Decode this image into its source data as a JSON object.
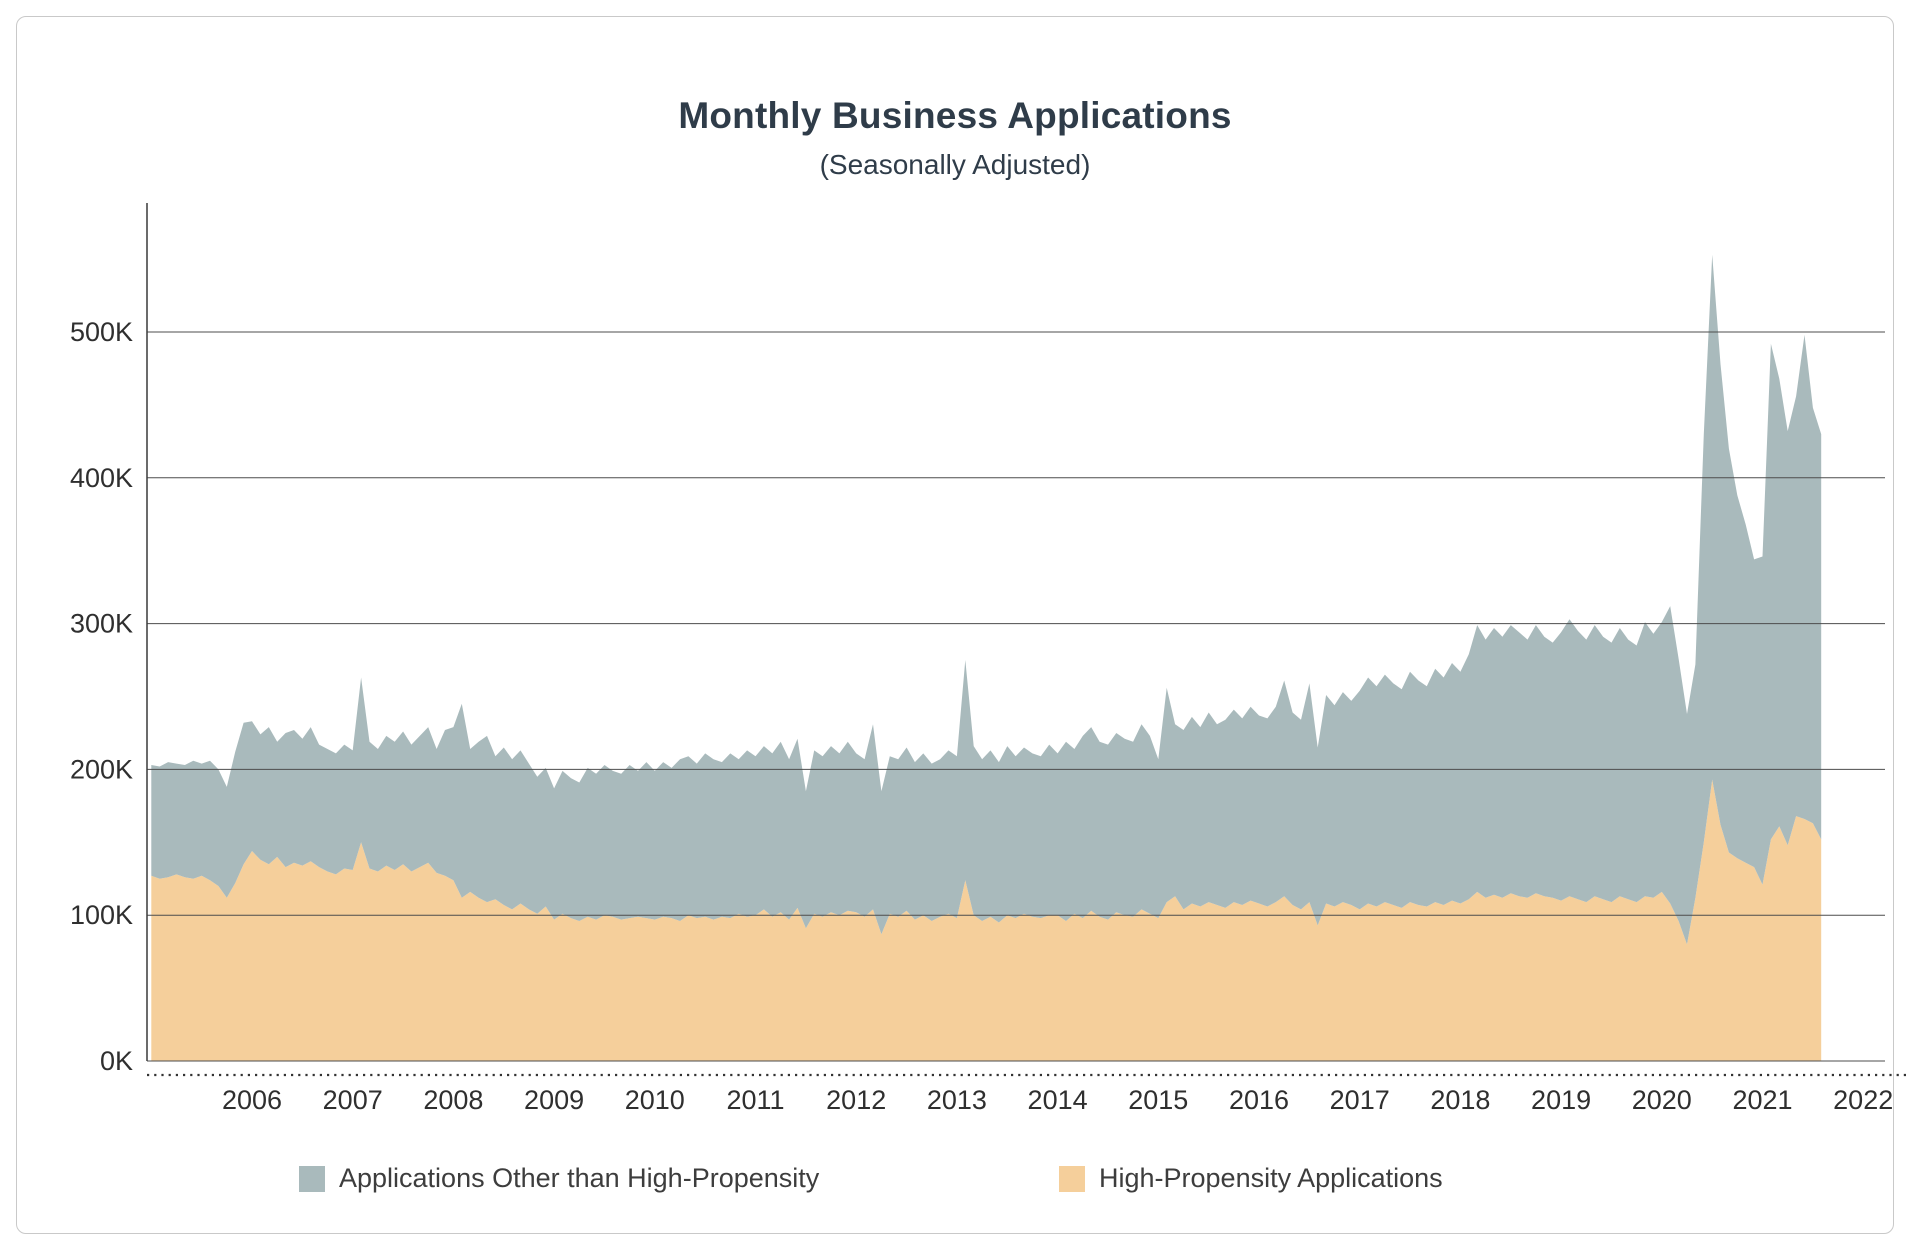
{
  "header": {
    "title": "Monthly Business Applications",
    "subtitle": "(Seasonally Adjusted)"
  },
  "legend": [
    {
      "label": "Applications Other than High-Propensity",
      "color": "#a9babc"
    },
    {
      "label": "High-Propensity Applications",
      "color": "#f5cf9b"
    }
  ],
  "axes": {
    "y_ticks": [
      {
        "label": "500K",
        "value": 500
      },
      {
        "label": "400K",
        "value": 400
      },
      {
        "label": "300K",
        "value": 300
      },
      {
        "label": "200K",
        "value": 200
      },
      {
        "label": "100K",
        "value": 100
      },
      {
        "label": "0K",
        "value": 0
      }
    ],
    "x_ticks": [
      "2006",
      "2007",
      "2008",
      "2009",
      "2010",
      "2011",
      "2012",
      "2013",
      "2014",
      "2015",
      "2016",
      "2017",
      "2018",
      "2019",
      "2020",
      "2021",
      "2022"
    ]
  },
  "chart_data": {
    "type": "area",
    "stacked": true,
    "title": "Monthly Business Applications",
    "subtitle": "(Seasonally Adjusted)",
    "unit": "thousands of applications per month",
    "frequency": "monthly",
    "start_month": "2005-01",
    "end_month": "2021-08",
    "ylim": [
      0,
      560
    ],
    "x_axis_years": [
      2006,
      2007,
      2008,
      2009,
      2010,
      2011,
      2012,
      2013,
      2014,
      2015,
      2016,
      2017,
      2018,
      2019,
      2020,
      2021,
      2022
    ],
    "grid": true,
    "legend_position": "bottom",
    "series": [
      {
        "name": "High-Propensity Applications",
        "color": "#f5cf9b",
        "values": [
          127,
          125,
          126,
          128,
          126,
          125,
          127,
          124,
          120,
          112,
          122,
          135,
          144,
          138,
          135,
          140,
          133,
          136,
          134,
          137,
          133,
          130,
          128,
          132,
          131,
          150,
          132,
          130,
          134,
          131,
          135,
          130,
          133,
          136,
          129,
          127,
          124,
          112,
          116,
          112,
          109,
          111,
          107,
          104,
          108,
          104,
          101,
          106,
          97,
          101,
          98,
          96,
          99,
          97,
          100,
          99,
          97,
          98,
          99,
          98,
          97,
          99,
          98,
          96,
          100,
          98,
          99,
          97,
          99,
          98,
          101,
          99,
          100,
          104,
          99,
          102,
          97,
          105,
          91,
          101,
          99,
          102,
          100,
          103,
          102,
          99,
          104,
          87,
          101,
          99,
          103,
          97,
          100,
          96,
          99,
          101,
          98,
          124,
          100,
          96,
          99,
          95,
          100,
          98,
          101,
          99,
          98,
          100,
          100,
          96,
          101,
          98,
          103,
          99,
          97,
          102,
          100,
          99,
          104,
          101,
          98,
          109,
          113,
          104,
          108,
          106,
          109,
          107,
          105,
          109,
          107,
          110,
          108,
          106,
          109,
          113,
          107,
          104,
          109,
          93,
          108,
          106,
          109,
          107,
          104,
          108,
          106,
          109,
          107,
          105,
          109,
          107,
          106,
          109,
          107,
          110,
          108,
          111,
          116,
          112,
          114,
          112,
          115,
          113,
          112,
          115,
          113,
          112,
          110,
          113,
          111,
          109,
          113,
          111,
          109,
          113,
          111,
          109,
          113,
          112,
          116,
          108,
          96,
          80,
          112,
          150,
          193,
          162,
          143,
          139,
          136,
          133,
          121,
          152,
          161,
          148,
          168,
          166,
          163,
          152
        ]
      },
      {
        "name": "Applications Other than High-Propensity",
        "color": "#a9babc",
        "values": [
          76,
          77,
          79,
          76,
          77,
          81,
          77,
          82,
          80,
          76,
          90,
          97,
          89,
          86,
          94,
          79,
          92,
          91,
          87,
          92,
          84,
          84,
          83,
          85,
          82,
          113,
          87,
          84,
          89,
          88,
          91,
          87,
          90,
          93,
          85,
          100,
          105,
          133,
          98,
          107,
          114,
          98,
          108,
          103,
          105,
          100,
          94,
          95,
          90,
          98,
          96,
          95,
          102,
          100,
          103,
          100,
          100,
          105,
          100,
          107,
          102,
          106,
          103,
          111,
          109,
          106,
          112,
          110,
          106,
          113,
          106,
          114,
          109,
          112,
          112,
          117,
          110,
          116,
          94,
          112,
          110,
          114,
          111,
          116,
          109,
          108,
          127,
          98,
          108,
          108,
          112,
          108,
          111,
          108,
          108,
          112,
          111,
          151,
          116,
          111,
          114,
          110,
          116,
          111,
          114,
          112,
          111,
          117,
          111,
          123,
          113,
          125,
          126,
          120,
          120,
          123,
          121,
          120,
          127,
          122,
          109,
          147,
          118,
          123,
          128,
          123,
          130,
          124,
          129,
          132,
          128,
          133,
          129,
          129,
          134,
          148,
          132,
          130,
          150,
          122,
          143,
          138,
          144,
          140,
          150,
          155,
          151,
          156,
          152,
          150,
          158,
          154,
          151,
          160,
          156,
          163,
          159,
          168,
          183,
          177,
          183,
          179,
          184,
          181,
          177,
          184,
          178,
          175,
          184,
          190,
          184,
          180,
          186,
          180,
          178,
          184,
          178,
          176,
          188,
          181,
          185,
          204,
          180,
          158,
          160,
          280,
          360,
          316,
          277,
          249,
          232,
          211,
          225,
          340,
          307,
          284,
          288,
          332,
          285,
          278
        ]
      }
    ]
  }
}
